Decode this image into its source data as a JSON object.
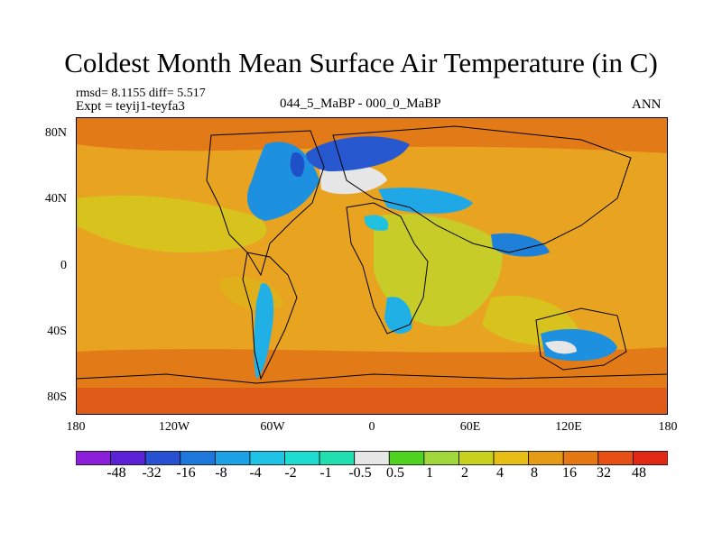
{
  "title": "Coldest Month Mean Surface Air Temperature (in C)",
  "stats": "rmsd= 8.1155 diff= 5.517",
  "experiment": "Expt = teyij1-teyfa3",
  "period": "044_5_MaBP - 000_0_MaBP",
  "season": "ANN",
  "map": {
    "lon_range": [
      -180,
      180
    ],
    "lat_range": [
      -90,
      90
    ],
    "y_ticks": [
      {
        "value": 80,
        "label": "80N"
      },
      {
        "value": 40,
        "label": "40N"
      },
      {
        "value": 0,
        "label": "0"
      },
      {
        "value": -40,
        "label": "40S"
      },
      {
        "value": -80,
        "label": "80S"
      }
    ],
    "x_ticks": [
      {
        "value": -180,
        "label": "180"
      },
      {
        "value": -120,
        "label": "120W"
      },
      {
        "value": -60,
        "label": "60W"
      },
      {
        "value": 0,
        "label": "0"
      },
      {
        "value": 60,
        "label": "60E"
      },
      {
        "value": 120,
        "label": "120E"
      },
      {
        "value": 180,
        "label": "180"
      }
    ],
    "background_color": "#e8a320"
  },
  "colorbar": {
    "labels": [
      "-48",
      "-32",
      "-16",
      "-8",
      "-4",
      "-2",
      "-1",
      "-0.5",
      "0.5",
      "1",
      "2",
      "4",
      "8",
      "16",
      "32",
      "48"
    ],
    "colors": [
      "#8c1fd9",
      "#5a22d4",
      "#2851d2",
      "#1e78dc",
      "#1ea0e6",
      "#1ec3e6",
      "#1edcd2",
      "#20e0b0",
      "#e6e6e6",
      "#50d220",
      "#a0d73c",
      "#c8d21e",
      "#e6be14",
      "#e69b14",
      "#e67814",
      "#e65014",
      "#e02814"
    ]
  }
}
